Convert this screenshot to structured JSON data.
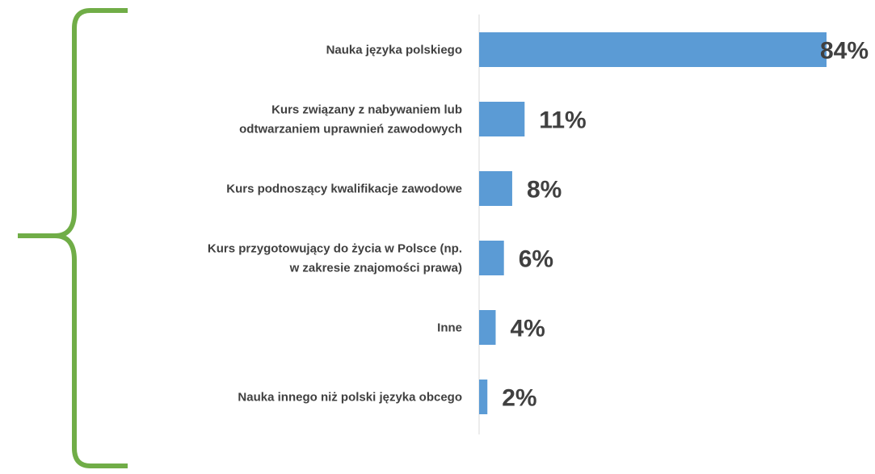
{
  "colors": {
    "bar": "#5b9bd5",
    "bracket": "#70ad47",
    "axis": "#d9d9d9",
    "text": "#404040"
  },
  "chart_data": {
    "type": "bar",
    "orientation": "horizontal",
    "categories": [
      [
        "Nauka języka polskiego"
      ],
      [
        "Kurs związany z nabywaniem lub",
        "odtwarzaniem uprawnień zawodowych"
      ],
      [
        "Kurs podnoszący kwalifikacje zawodowe"
      ],
      [
        "Kurs przygotowujący do życia w Polsce (np.",
        "w zakresie znajomości prawa)"
      ],
      [
        "Inne"
      ],
      [
        "Nauka innego niż polski języka obcego"
      ]
    ],
    "values": [
      84,
      11,
      8,
      6,
      4,
      2
    ],
    "value_labels": [
      "84%",
      "11%",
      "8%",
      "6%",
      "4%",
      "2%"
    ],
    "unit": "%",
    "xlim": [
      0,
      84
    ],
    "grid": false,
    "legend": "none",
    "decoration": "curly brace on left grouping all categories"
  }
}
